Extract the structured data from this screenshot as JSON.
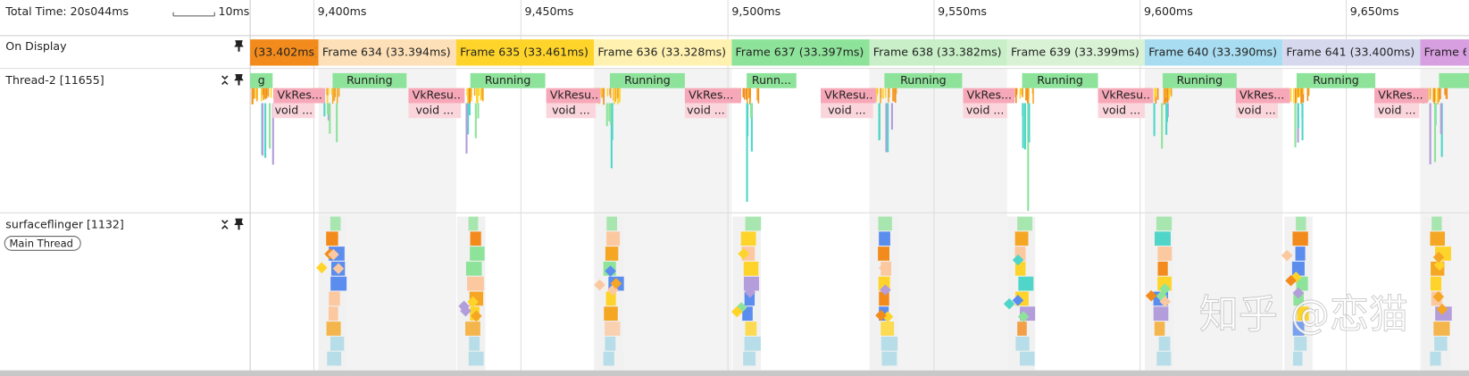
{
  "header": {
    "total_time": "Total Time: 20s044ms",
    "scale_label": "10ms",
    "ticks": [
      "9,400ms",
      "9,450ms",
      "9,500ms",
      "9,550ms",
      "9,600ms",
      "9,650ms"
    ]
  },
  "on_display": {
    "label": "On Display",
    "frames": [
      "(33.402ms)",
      "Frame 634 (33.394ms)",
      "Frame 635 (33.461ms)",
      "Frame 636 (33.328ms)",
      "Frame 637 (33.397ms)",
      "Frame 638 (33.382ms)",
      "Frame 639 (33.399ms)",
      "Frame 640 (33.390ms)",
      "Frame 641 (33.400ms)",
      "Frame 6"
    ]
  },
  "thread": {
    "label": "Thread-2 [11655]",
    "running": [
      "g",
      "Running",
      "Running",
      "Running",
      "Runn...",
      "Running",
      "Running",
      "Running",
      "Running"
    ],
    "vk": [
      "VkRes...",
      "VkResu...",
      "VkResu...",
      "VkRes...",
      "VkResu...",
      "VkRes...",
      "VkResu...",
      "VkRes...",
      "VkRes..."
    ],
    "void": [
      "void ...",
      "void ...",
      "void ...",
      "void ...",
      "void ...",
      "void ...",
      "void ...",
      "void ...",
      "void ..."
    ]
  },
  "surfaceflinger": {
    "label": "surfaceflinger [1132]",
    "badge": "Main Thread"
  },
  "watermark": "知乎 @恋猫"
}
